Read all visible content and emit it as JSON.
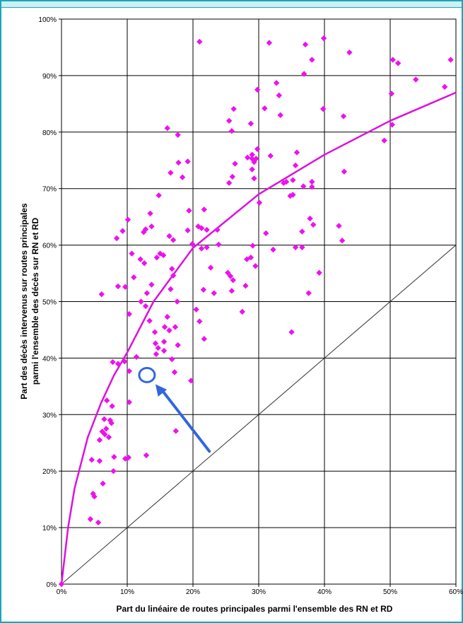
{
  "chart_data": {
    "type": "scatter",
    "xlabel": "Part du linéaire de routes principales parmi l'ensemble des RN et RD",
    "ylabel_line1": "Part des décès intervenus sur routes principales",
    "ylabel_line2": "parmi l'ensemble des décès sur RN et RD",
    "xlim": [
      0,
      60
    ],
    "ylim": [
      0,
      100
    ],
    "x_ticks": [
      "0%",
      "10%",
      "20%",
      "30%",
      "40%",
      "50%",
      "60%"
    ],
    "y_ticks": [
      "0%",
      "10%",
      "20%",
      "30%",
      "40%",
      "50%",
      "60%",
      "70%",
      "80%",
      "90%",
      "100%"
    ],
    "grid": true,
    "marker_color": "#ee11ee",
    "curve_color": "#dd11dd",
    "reference_line": {
      "x": [
        0,
        60
      ],
      "y": [
        0,
        60
      ]
    },
    "highlight": {
      "x": 13,
      "y": 37,
      "color": "#3366dd"
    },
    "fit_curve": {
      "x": [
        0,
        1,
        2,
        4,
        6,
        8,
        10,
        14,
        20,
        30,
        40,
        50,
        60
      ],
      "y": [
        0,
        10,
        17,
        26,
        32,
        37,
        41,
        50,
        59.5,
        69,
        76,
        82,
        87
      ]
    },
    "points": [
      {
        "x": 0,
        "y": 0
      },
      {
        "x": 4.4,
        "y": 11.5
      },
      {
        "x": 5.6,
        "y": 10.9
      },
      {
        "x": 5.0,
        "y": 15.5
      },
      {
        "x": 4.8,
        "y": 16.0
      },
      {
        "x": 6.3,
        "y": 17.8
      },
      {
        "x": 7.9,
        "y": 20.0
      },
      {
        "x": 4.6,
        "y": 22.0
      },
      {
        "x": 5.8,
        "y": 21.8
      },
      {
        "x": 6.6,
        "y": 26.5
      },
      {
        "x": 5.8,
        "y": 25.5
      },
      {
        "x": 6.2,
        "y": 27.0
      },
      {
        "x": 6.8,
        "y": 27.5
      },
      {
        "x": 7.4,
        "y": 29.0
      },
      {
        "x": 7.6,
        "y": 28.5
      },
      {
        "x": 6.9,
        "y": 32.5
      },
      {
        "x": 7.7,
        "y": 31.5
      },
      {
        "x": 7.2,
        "y": 26.0
      },
      {
        "x": 6.5,
        "y": 29.2
      },
      {
        "x": 8.0,
        "y": 22.5
      },
      {
        "x": 9.7,
        "y": 22.2
      },
      {
        "x": 10.2,
        "y": 22.4
      },
      {
        "x": 12.9,
        "y": 22.8
      },
      {
        "x": 10.3,
        "y": 32.2
      },
      {
        "x": 7.8,
        "y": 39.3
      },
      {
        "x": 8.6,
        "y": 39.0
      },
      {
        "x": 9.6,
        "y": 39.4
      },
      {
        "x": 6.1,
        "y": 51.3
      },
      {
        "x": 8.6,
        "y": 52.7
      },
      {
        "x": 9.7,
        "y": 52.6
      },
      {
        "x": 10.3,
        "y": 47.8
      },
      {
        "x": 10.3,
        "y": 37.7
      },
      {
        "x": 11.4,
        "y": 40.2
      },
      {
        "x": 8.4,
        "y": 61.2
      },
      {
        "x": 9.3,
        "y": 62.5
      },
      {
        "x": 10.1,
        "y": 64.5
      },
      {
        "x": 10.7,
        "y": 58.5
      },
      {
        "x": 11.0,
        "y": 54.3
      },
      {
        "x": 12.0,
        "y": 57.5
      },
      {
        "x": 12.6,
        "y": 56.8
      },
      {
        "x": 12.5,
        "y": 62.3
      },
      {
        "x": 12.8,
        "y": 62.8
      },
      {
        "x": 13.7,
        "y": 63.3
      },
      {
        "x": 13.5,
        "y": 65.6
      },
      {
        "x": 14.8,
        "y": 68.8
      },
      {
        "x": 13.0,
        "y": 51.5
      },
      {
        "x": 12.1,
        "y": 50.0
      },
      {
        "x": 12.8,
        "y": 49.2
      },
      {
        "x": 13.7,
        "y": 53.0
      },
      {
        "x": 13.4,
        "y": 46.6
      },
      {
        "x": 14.2,
        "y": 44.6
      },
      {
        "x": 14.3,
        "y": 42.6
      },
      {
        "x": 14.7,
        "y": 41.8
      },
      {
        "x": 15.6,
        "y": 41.3
      },
      {
        "x": 14.4,
        "y": 40.7
      },
      {
        "x": 15.6,
        "y": 42.9
      },
      {
        "x": 15.7,
        "y": 45.5
      },
      {
        "x": 16.4,
        "y": 44.9
      },
      {
        "x": 16.1,
        "y": 47.3
      },
      {
        "x": 17.3,
        "y": 45.5
      },
      {
        "x": 17.6,
        "y": 50.0
      },
      {
        "x": 16.6,
        "y": 52.2
      },
      {
        "x": 17.0,
        "y": 54.6
      },
      {
        "x": 16.8,
        "y": 55.8
      },
      {
        "x": 15.0,
        "y": 58.5
      },
      {
        "x": 15.5,
        "y": 58.2
      },
      {
        "x": 14.5,
        "y": 57.8
      },
      {
        "x": 16.4,
        "y": 61.6
      },
      {
        "x": 17.0,
        "y": 60.9
      },
      {
        "x": 16.6,
        "y": 72.8
      },
      {
        "x": 17.8,
        "y": 74.6
      },
      {
        "x": 16.1,
        "y": 80.7
      },
      {
        "x": 17.7,
        "y": 79.5
      },
      {
        "x": 18.4,
        "y": 72.0
      },
      {
        "x": 19.2,
        "y": 74.8
      },
      {
        "x": 17.2,
        "y": 37.5
      },
      {
        "x": 16.8,
        "y": 39.8
      },
      {
        "x": 17.7,
        "y": 42.3
      },
      {
        "x": 19.7,
        "y": 36.0
      },
      {
        "x": 17.4,
        "y": 27.1
      },
      {
        "x": 19.2,
        "y": 62.6
      },
      {
        "x": 19.4,
        "y": 66.1
      },
      {
        "x": 19.9,
        "y": 60.2
      },
      {
        "x": 20.5,
        "y": 48.6
      },
      {
        "x": 21.0,
        "y": 46.5
      },
      {
        "x": 21.7,
        "y": 43.4
      },
      {
        "x": 21.6,
        "y": 52.1
      },
      {
        "x": 20.8,
        "y": 63.3
      },
      {
        "x": 21.3,
        "y": 63.0
      },
      {
        "x": 21.7,
        "y": 66.3
      },
      {
        "x": 21.3,
        "y": 59.4
      },
      {
        "x": 22.1,
        "y": 59.6
      },
      {
        "x": 21.0,
        "y": 96.0
      },
      {
        "x": 22.1,
        "y": 62.7
      },
      {
        "x": 22.7,
        "y": 56.0
      },
      {
        "x": 23.2,
        "y": 51.5
      },
      {
        "x": 23.9,
        "y": 60.1
      },
      {
        "x": 23.7,
        "y": 62.7
      },
      {
        "x": 25.3,
        "y": 55.1
      },
      {
        "x": 25.7,
        "y": 54.5
      },
      {
        "x": 26.1,
        "y": 53.8
      },
      {
        "x": 25.9,
        "y": 51.9
      },
      {
        "x": 25.5,
        "y": 71.0
      },
      {
        "x": 26.0,
        "y": 72.1
      },
      {
        "x": 26.4,
        "y": 74.4
      },
      {
        "x": 25.9,
        "y": 80.2
      },
      {
        "x": 26.2,
        "y": 84.1
      },
      {
        "x": 25.5,
        "y": 82.0
      },
      {
        "x": 27.5,
        "y": 48.2
      },
      {
        "x": 28.0,
        "y": 52.8
      },
      {
        "x": 28.2,
        "y": 57.5
      },
      {
        "x": 28.8,
        "y": 57.8
      },
      {
        "x": 29.1,
        "y": 59.9
      },
      {
        "x": 29.5,
        "y": 56.3
      },
      {
        "x": 28.3,
        "y": 75.5
      },
      {
        "x": 29.0,
        "y": 75.3
      },
      {
        "x": 29.3,
        "y": 74.7
      },
      {
        "x": 29.6,
        "y": 75.3
      },
      {
        "x": 29.0,
        "y": 76.0
      },
      {
        "x": 29.8,
        "y": 77.0
      },
      {
        "x": 29.0,
        "y": 73.4
      },
      {
        "x": 29.3,
        "y": 71.8
      },
      {
        "x": 28.8,
        "y": 81.5
      },
      {
        "x": 29.8,
        "y": 87.5
      },
      {
        "x": 30.1,
        "y": 67.5
      },
      {
        "x": 30.9,
        "y": 84.2
      },
      {
        "x": 31.1,
        "y": 62.1
      },
      {
        "x": 31.8,
        "y": 75.8
      },
      {
        "x": 31.6,
        "y": 95.8
      },
      {
        "x": 32.2,
        "y": 59.2
      },
      {
        "x": 32.7,
        "y": 88.7
      },
      {
        "x": 33.1,
        "y": 86.5
      },
      {
        "x": 33.3,
        "y": 83.0
      },
      {
        "x": 33.8,
        "y": 71.0
      },
      {
        "x": 34.2,
        "y": 71.2
      },
      {
        "x": 34.8,
        "y": 68.7
      },
      {
        "x": 35.2,
        "y": 68.9
      },
      {
        "x": 35.0,
        "y": 44.6
      },
      {
        "x": 35.6,
        "y": 59.6
      },
      {
        "x": 35.2,
        "y": 71.5
      },
      {
        "x": 35.6,
        "y": 74.1
      },
      {
        "x": 35.8,
        "y": 76.4
      },
      {
        "x": 36.6,
        "y": 59.6
      },
      {
        "x": 36.6,
        "y": 62.4
      },
      {
        "x": 36.8,
        "y": 70.4
      },
      {
        "x": 36.9,
        "y": 90.3
      },
      {
        "x": 37.1,
        "y": 95.5
      },
      {
        "x": 37.6,
        "y": 51.5
      },
      {
        "x": 37.8,
        "y": 64.7
      },
      {
        "x": 38.1,
        "y": 71.2
      },
      {
        "x": 38.1,
        "y": 70.3
      },
      {
        "x": 38.3,
        "y": 63.6
      },
      {
        "x": 38.1,
        "y": 92.8
      },
      {
        "x": 39.2,
        "y": 55.1
      },
      {
        "x": 39.8,
        "y": 84.1
      },
      {
        "x": 39.9,
        "y": 96.6
      },
      {
        "x": 42.2,
        "y": 63.4
      },
      {
        "x": 42.7,
        "y": 60.8
      },
      {
        "x": 43.0,
        "y": 73.0
      },
      {
        "x": 42.9,
        "y": 82.8
      },
      {
        "x": 43.8,
        "y": 94.1
      },
      {
        "x": 49.1,
        "y": 78.5
      },
      {
        "x": 50.2,
        "y": 86.8
      },
      {
        "x": 50.3,
        "y": 81.3
      },
      {
        "x": 50.4,
        "y": 92.8
      },
      {
        "x": 51.2,
        "y": 92.2
      },
      {
        "x": 53.9,
        "y": 89.3
      },
      {
        "x": 58.3,
        "y": 88.0
      },
      {
        "x": 59.2,
        "y": 92.8
      }
    ]
  }
}
